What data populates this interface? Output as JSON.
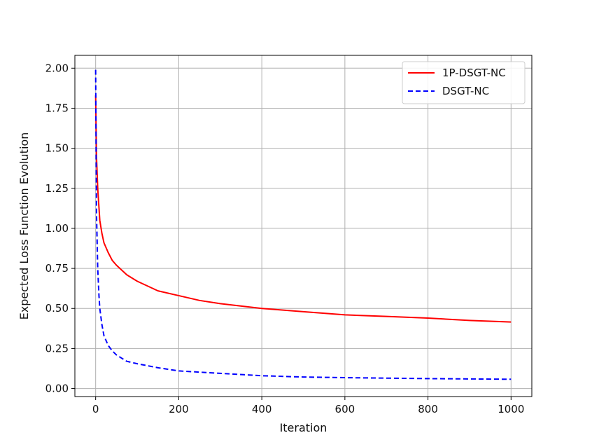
{
  "chart_data": {
    "type": "line",
    "title": "",
    "xlabel": "Iteration",
    "ylabel": "Expected Loss Function Evolution",
    "xlim": [
      -50,
      1050
    ],
    "ylim": [
      -0.05,
      2.08
    ],
    "x_ticks": [
      0,
      200,
      400,
      600,
      800,
      1000
    ],
    "x_tick_labels": [
      "0",
      "200",
      "400",
      "600",
      "800",
      "1000"
    ],
    "y_ticks": [
      0.0,
      0.25,
      0.5,
      0.75,
      1.0,
      1.25,
      1.5,
      1.75,
      2.0
    ],
    "y_tick_labels": [
      "0.00",
      "0.25",
      "0.50",
      "0.75",
      "1.00",
      "1.25",
      "1.50",
      "1.75",
      "2.00"
    ],
    "grid": true,
    "legend_position": "top-right",
    "series": [
      {
        "name": "1P-DSGT-NC",
        "color": "#ff0000",
        "style": "solid",
        "x": [
          0,
          2,
          5,
          10,
          15,
          20,
          30,
          40,
          50,
          75,
          100,
          150,
          200,
          250,
          300,
          400,
          500,
          600,
          700,
          800,
          900,
          1000
        ],
        "y": [
          1.83,
          1.45,
          1.25,
          1.05,
          0.97,
          0.91,
          0.85,
          0.8,
          0.77,
          0.71,
          0.67,
          0.61,
          0.58,
          0.55,
          0.53,
          0.5,
          0.48,
          0.46,
          0.45,
          0.44,
          0.425,
          0.415
        ]
      },
      {
        "name": "DSGT-NC",
        "color": "#0000ff",
        "style": "dashed",
        "x": [
          0,
          2,
          5,
          8,
          10,
          15,
          20,
          30,
          40,
          50,
          75,
          100,
          150,
          200,
          300,
          400,
          500,
          600,
          700,
          800,
          900,
          1000
        ],
        "y": [
          1.99,
          1.1,
          0.75,
          0.58,
          0.5,
          0.4,
          0.33,
          0.27,
          0.235,
          0.21,
          0.17,
          0.155,
          0.13,
          0.11,
          0.095,
          0.08,
          0.072,
          0.068,
          0.065,
          0.062,
          0.06,
          0.058
        ]
      }
    ]
  }
}
